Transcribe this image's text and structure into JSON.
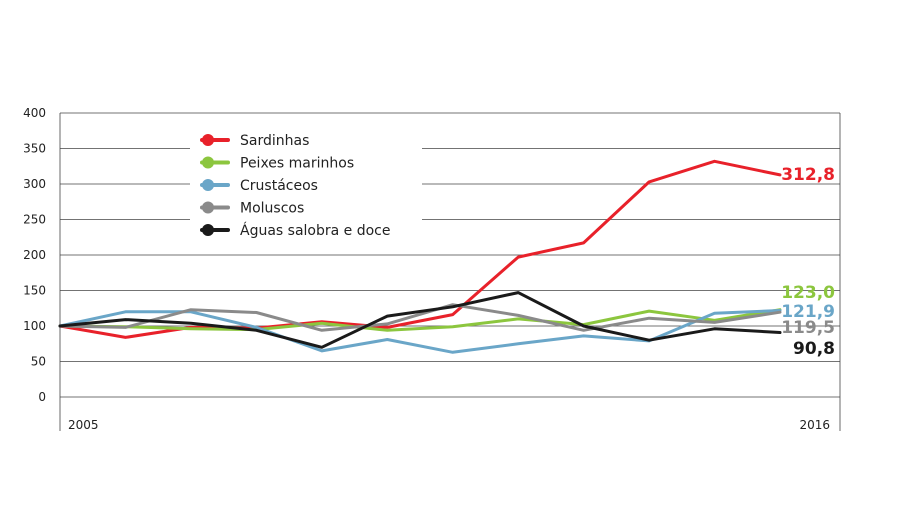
{
  "chart_data": {
    "type": "line",
    "x": [
      2005,
      2006,
      2007,
      2008,
      2009,
      2010,
      2011,
      2012,
      2013,
      2014,
      2015,
      2016
    ],
    "x_tick_labels": [
      "2005",
      "2016"
    ],
    "y_ticks": [
      "0",
      "50",
      "100",
      "150",
      "200",
      "250",
      "300",
      "350",
      "400"
    ],
    "ylim": [
      0,
      400
    ],
    "grid": "horizontal",
    "legend_position": "top-left",
    "series": [
      {
        "name": "Sardinhas",
        "color": "#e8212a",
        "end_label": "312,8",
        "values": [
          100,
          84,
          98,
          97,
          106,
          98,
          116,
          197,
          217,
          303,
          332,
          312.8
        ]
      },
      {
        "name": "Peixes marinhos",
        "color": "#8cc63e",
        "end_label": "123,0",
        "values": [
          100,
          99,
          96,
          95,
          104,
          94,
          99,
          110,
          102,
          121,
          108,
          123
        ]
      },
      {
        "name": "Crustáceos",
        "color": "#6aa6c8",
        "end_label": "121,9",
        "values": [
          100,
          120,
          120,
          98,
          65,
          81,
          63,
          75,
          86,
          79,
          118,
          121.9
        ]
      },
      {
        "name": "Moluscos",
        "color": "#8a8a8a",
        "end_label": "119,5",
        "values": [
          100,
          98,
          123,
          119,
          94,
          103,
          130,
          115,
          94,
          111,
          105,
          119.5
        ]
      },
      {
        "name": "Águas salobra e doce",
        "color": "#1a1a1a",
        "end_label": "90,8",
        "values": [
          100,
          109,
          104,
          94,
          70,
          114,
          127,
          147,
          100,
          80,
          96,
          90.8
        ]
      }
    ]
  }
}
